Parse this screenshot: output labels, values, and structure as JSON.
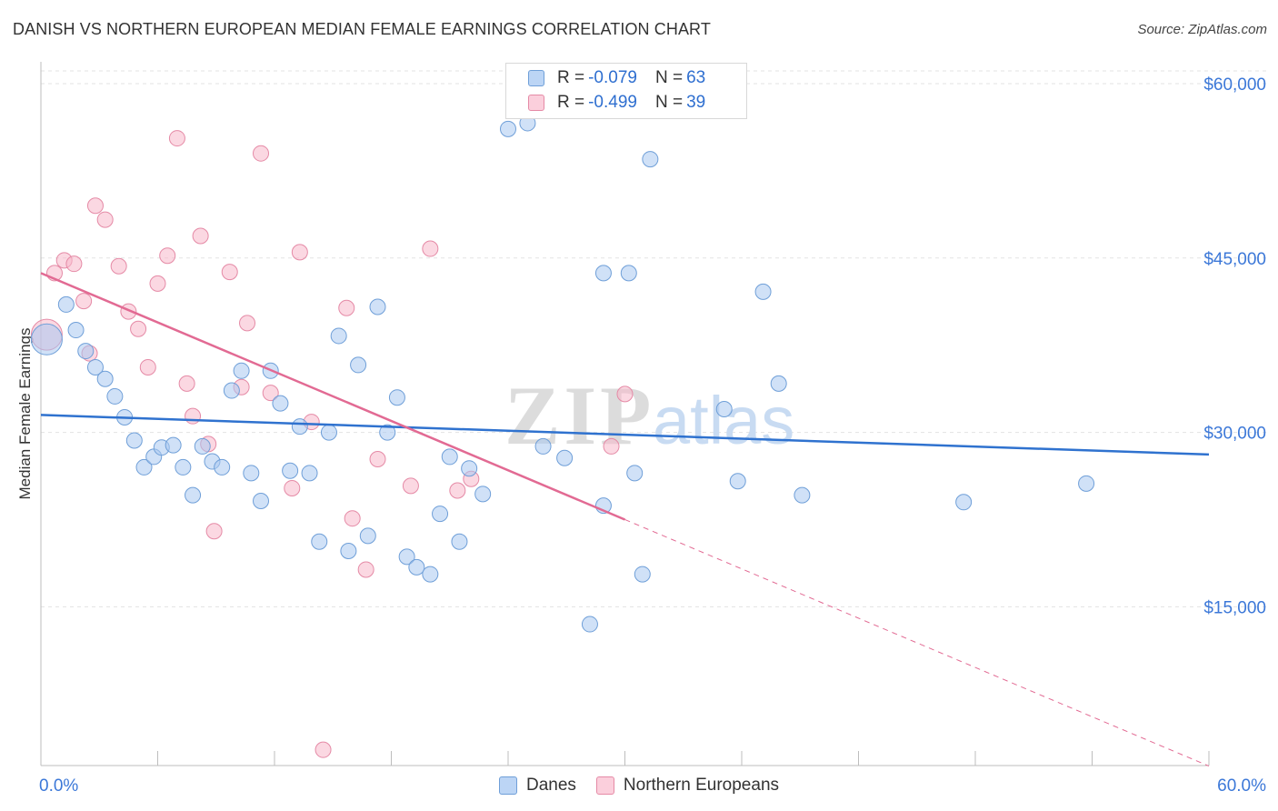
{
  "title": "DANISH VS NORTHERN EUROPEAN MEDIAN FEMALE EARNINGS CORRELATION CHART",
  "source": "Source: ZipAtlas.com",
  "watermark": {
    "zip": "ZIP",
    "atlas": "atlas"
  },
  "legend_top": [
    {
      "r_label": "R = ",
      "r_value": "-0.079",
      "n_label": "N = ",
      "n_value": "63"
    },
    {
      "r_label": "R = ",
      "r_value": "-0.499",
      "n_label": "N = ",
      "n_value": "39"
    }
  ],
  "legend_bottom": [
    "Danes",
    "Northern Europeans"
  ],
  "colors": {
    "danes_fill": "#a9c8f0",
    "danes_stroke": "#6f9fd8",
    "danes_line": "#2f72cf",
    "ne_fill": "#f7b8cb",
    "ne_stroke": "#e58aa6",
    "ne_line": "#e26a93",
    "axis_text": "#3c78d8",
    "grid": "#e3e3e3"
  },
  "chart_data": {
    "type": "scatter",
    "title": "DANISH VS NORTHERN EUROPEAN MEDIAN FEMALE EARNINGS CORRELATION CHART",
    "xlabel": "",
    "ylabel": "Median Female Earnings",
    "xlim": [
      0,
      60
    ],
    "ylim": [
      1500,
      62500
    ],
    "x_tick_labels": [
      {
        "value": 0,
        "label": "0.0%"
      },
      {
        "value": 60,
        "label": "60.0%"
      }
    ],
    "y_ticks": [
      {
        "value": 15000,
        "label": "$15,000"
      },
      {
        "value": 30000,
        "label": "$30,000"
      },
      {
        "value": 45000,
        "label": "$45,000"
      },
      {
        "value": 60000,
        "label": "$60,000"
      }
    ],
    "series": [
      {
        "name": "Danes",
        "r": -0.079,
        "n": 63,
        "trend": {
          "x": [
            0,
            60
          ],
          "y": [
            31500,
            28100
          ]
        },
        "points": [
          [
            0.3,
            38000,
            2
          ],
          [
            1.3,
            41000,
            1
          ],
          [
            1.8,
            38800,
            1
          ],
          [
            2.3,
            37000,
            1
          ],
          [
            2.8,
            35600,
            1
          ],
          [
            3.3,
            34600,
            1
          ],
          [
            3.8,
            33100,
            1
          ],
          [
            4.3,
            31300,
            1
          ],
          [
            4.8,
            29300,
            1
          ],
          [
            5.3,
            27000,
            1
          ],
          [
            5.8,
            27900,
            1
          ],
          [
            6.2,
            28700,
            1
          ],
          [
            6.8,
            28900,
            1
          ],
          [
            7.3,
            27000,
            1
          ],
          [
            7.8,
            24600,
            1
          ],
          [
            8.3,
            28800,
            1
          ],
          [
            8.8,
            27500,
            1
          ],
          [
            9.3,
            27000,
            1
          ],
          [
            9.8,
            33600,
            1
          ],
          [
            10.3,
            35300,
            1
          ],
          [
            10.8,
            26500,
            1
          ],
          [
            11.3,
            24100,
            1
          ],
          [
            11.8,
            35300,
            1
          ],
          [
            12.3,
            32500,
            1
          ],
          [
            12.8,
            26700,
            1
          ],
          [
            13.3,
            30500,
            1
          ],
          [
            13.8,
            26500,
            1
          ],
          [
            14.3,
            20600,
            1
          ],
          [
            14.8,
            30000,
            1
          ],
          [
            15.3,
            38300,
            1
          ],
          [
            15.8,
            19800,
            1
          ],
          [
            16.3,
            35800,
            1
          ],
          [
            16.8,
            21100,
            1
          ],
          [
            17.3,
            40800,
            1
          ],
          [
            17.8,
            30000,
            1
          ],
          [
            18.3,
            33000,
            1
          ],
          [
            18.8,
            19300,
            1
          ],
          [
            19.3,
            18400,
            1
          ],
          [
            20.0,
            17800,
            1
          ],
          [
            20.5,
            23000,
            1
          ],
          [
            21.0,
            27900,
            1
          ],
          [
            21.5,
            20600,
            1
          ],
          [
            22.0,
            26900,
            1
          ],
          [
            22.7,
            24700,
            1
          ],
          [
            24.0,
            56100,
            1
          ],
          [
            25.0,
            56600,
            1
          ],
          [
            25.8,
            28800,
            1
          ],
          [
            26.9,
            27800,
            1
          ],
          [
            28.2,
            13500,
            1
          ],
          [
            28.9,
            43700,
            1
          ],
          [
            28.9,
            23700,
            1
          ],
          [
            30.2,
            43700,
            1
          ],
          [
            30.5,
            26500,
            1
          ],
          [
            30.9,
            17800,
            1
          ],
          [
            31.3,
            53500,
            1
          ],
          [
            35.1,
            32000,
            1
          ],
          [
            35.8,
            25800,
            1
          ],
          [
            37.1,
            42100,
            1
          ],
          [
            37.9,
            34200,
            1
          ],
          [
            39.1,
            24600,
            1
          ],
          [
            47.4,
            24000,
            1
          ],
          [
            53.7,
            25600,
            1
          ]
        ]
      },
      {
        "name": "Northern Europeans",
        "r": -0.499,
        "n": 39,
        "trend": {
          "x": [
            0,
            30
          ],
          "y": [
            43700,
            22500
          ]
        },
        "trend_dashed": {
          "x": [
            30,
            60
          ],
          "y": [
            22500,
            1300
          ]
        },
        "points": [
          [
            0.3,
            38400,
            2
          ],
          [
            0.7,
            43700,
            1
          ],
          [
            1.2,
            44800,
            1
          ],
          [
            1.7,
            44500,
            1
          ],
          [
            2.2,
            41300,
            1
          ],
          [
            2.5,
            36800,
            1
          ],
          [
            2.8,
            49500,
            1
          ],
          [
            3.3,
            48300,
            1
          ],
          [
            4.0,
            44300,
            1
          ],
          [
            4.5,
            40400,
            1
          ],
          [
            5.0,
            38900,
            1
          ],
          [
            5.5,
            35600,
            1
          ],
          [
            6.0,
            42800,
            1
          ],
          [
            6.5,
            45200,
            1
          ],
          [
            7.0,
            55300,
            1
          ],
          [
            7.5,
            34200,
            1
          ],
          [
            7.8,
            31400,
            1
          ],
          [
            8.2,
            46900,
            1
          ],
          [
            8.6,
            29000,
            1
          ],
          [
            8.9,
            21500,
            1
          ],
          [
            9.7,
            43800,
            1
          ],
          [
            10.3,
            33900,
            1
          ],
          [
            10.6,
            39400,
            1
          ],
          [
            11.3,
            54000,
            1
          ],
          [
            11.8,
            33400,
            1
          ],
          [
            12.9,
            25200,
            1
          ],
          [
            13.3,
            45500,
            1
          ],
          [
            13.9,
            30900,
            1
          ],
          [
            14.5,
            2700,
            1
          ],
          [
            15.7,
            40700,
            1
          ],
          [
            16.0,
            22600,
            1
          ],
          [
            16.7,
            18200,
            1
          ],
          [
            17.3,
            27700,
            1
          ],
          [
            19.0,
            25400,
            1
          ],
          [
            20.0,
            45800,
            1
          ],
          [
            21.4,
            25000,
            1
          ],
          [
            22.1,
            26000,
            1
          ],
          [
            29.3,
            28800,
            1
          ],
          [
            30.0,
            33300,
            1
          ]
        ]
      }
    ]
  }
}
